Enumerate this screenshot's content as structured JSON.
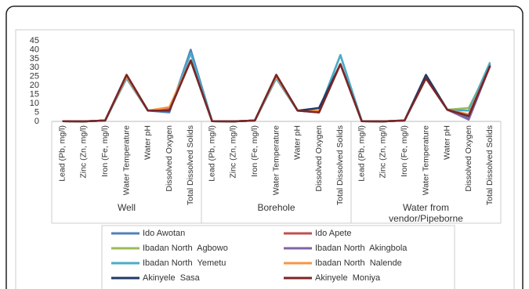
{
  "chart_data": {
    "type": "line",
    "groups": [
      "Well",
      "Borehole",
      "Water from vendor/Pipeborne"
    ],
    "categories": [
      "Lead (Pb, mg/l)",
      "Zinc (Zn, mg/l)",
      "Iron (Fe, mg/l)",
      "Water Temperature",
      "Water pH",
      "Dissolved Oxygen",
      "Total Dissolved Solids",
      "Lead (Pb, mg/l)",
      "Zinc (Zn, mg/l)",
      "Iron (Fe, mg/l)",
      "Water Temperature",
      "Water pH",
      "Dissolved Oxygen",
      "Total Dissolved Solids",
      "Lead (Pb, mg/l)",
      "Zinc (Zn, mg/l)",
      "Iron (Fe, mg/l)",
      "Water Temperature",
      "Water pH",
      "Dissolved Oxygen",
      "Total Dissolved Solids"
    ],
    "series": [
      {
        "name": "Ido Awotan",
        "color": "#4f81bd",
        "values": [
          0.1,
          0,
          0.5,
          24,
          6,
          5,
          40,
          0.1,
          0,
          0.5,
          24,
          6,
          6,
          37,
          0.1,
          0,
          0.5,
          25,
          6.5,
          2,
          32
        ]
      },
      {
        "name": "Ido Apete",
        "color": "#c0504d",
        "values": [
          0.1,
          0,
          0.5,
          25,
          6,
          7,
          34,
          0.1,
          0,
          0.5,
          25,
          6,
          5,
          32,
          0.1,
          0,
          0.5,
          24,
          6.5,
          3,
          31
        ]
      },
      {
        "name": "Ibadan North  Agbowo",
        "color": "#9bbb59",
        "values": [
          0.1,
          0,
          0.5,
          25,
          6,
          6,
          34,
          0.1,
          0,
          0.5,
          25,
          6,
          6,
          32,
          0.1,
          0,
          0.5,
          25,
          6.5,
          7.5,
          31
        ]
      },
      {
        "name": "Ibadan North  Akingbola",
        "color": "#8064a2",
        "values": [
          0.1,
          0,
          0.5,
          25,
          6,
          6,
          34,
          0.1,
          0,
          0.5,
          25,
          6,
          5,
          32,
          0.1,
          0,
          0.5,
          25,
          6.5,
          1,
          31
        ]
      },
      {
        "name": "Ibadan North  Yemetu",
        "color": "#4bacc6",
        "values": [
          0.1,
          0,
          0.5,
          24,
          6,
          6,
          38,
          0.1,
          0,
          0.5,
          24,
          6,
          6,
          37,
          0.1,
          0,
          0.5,
          25,
          6.5,
          6,
          33
        ]
      },
      {
        "name": "Ibadan North  Nalende",
        "color": "#f79646",
        "values": [
          0.1,
          0,
          0.5,
          25,
          6,
          8,
          34,
          0.1,
          0,
          0.5,
          25,
          6,
          6,
          32,
          0.1,
          0,
          0.5,
          25,
          6.5,
          4,
          31
        ]
      },
      {
        "name": "Akinyele  Sasa",
        "color": "#1f3864",
        "values": [
          0.1,
          0,
          0.5,
          26,
          6,
          6,
          34,
          0.1,
          0,
          0.5,
          26,
          6,
          7.5,
          32,
          0.1,
          0,
          0.5,
          26,
          6.5,
          3,
          31
        ]
      },
      {
        "name": "Akinyele  Moniya",
        "color": "#7b2626",
        "values": [
          0.1,
          0,
          0.5,
          26,
          6,
          6,
          34,
          0.1,
          0,
          0.5,
          26,
          6,
          5,
          32,
          0.1,
          0,
          0.5,
          24,
          6.5,
          3,
          31
        ]
      }
    ],
    "ylim": [
      0,
      45
    ],
    "yticks": [
      0,
      5,
      10,
      15,
      20,
      25,
      30,
      35,
      40,
      45
    ]
  }
}
